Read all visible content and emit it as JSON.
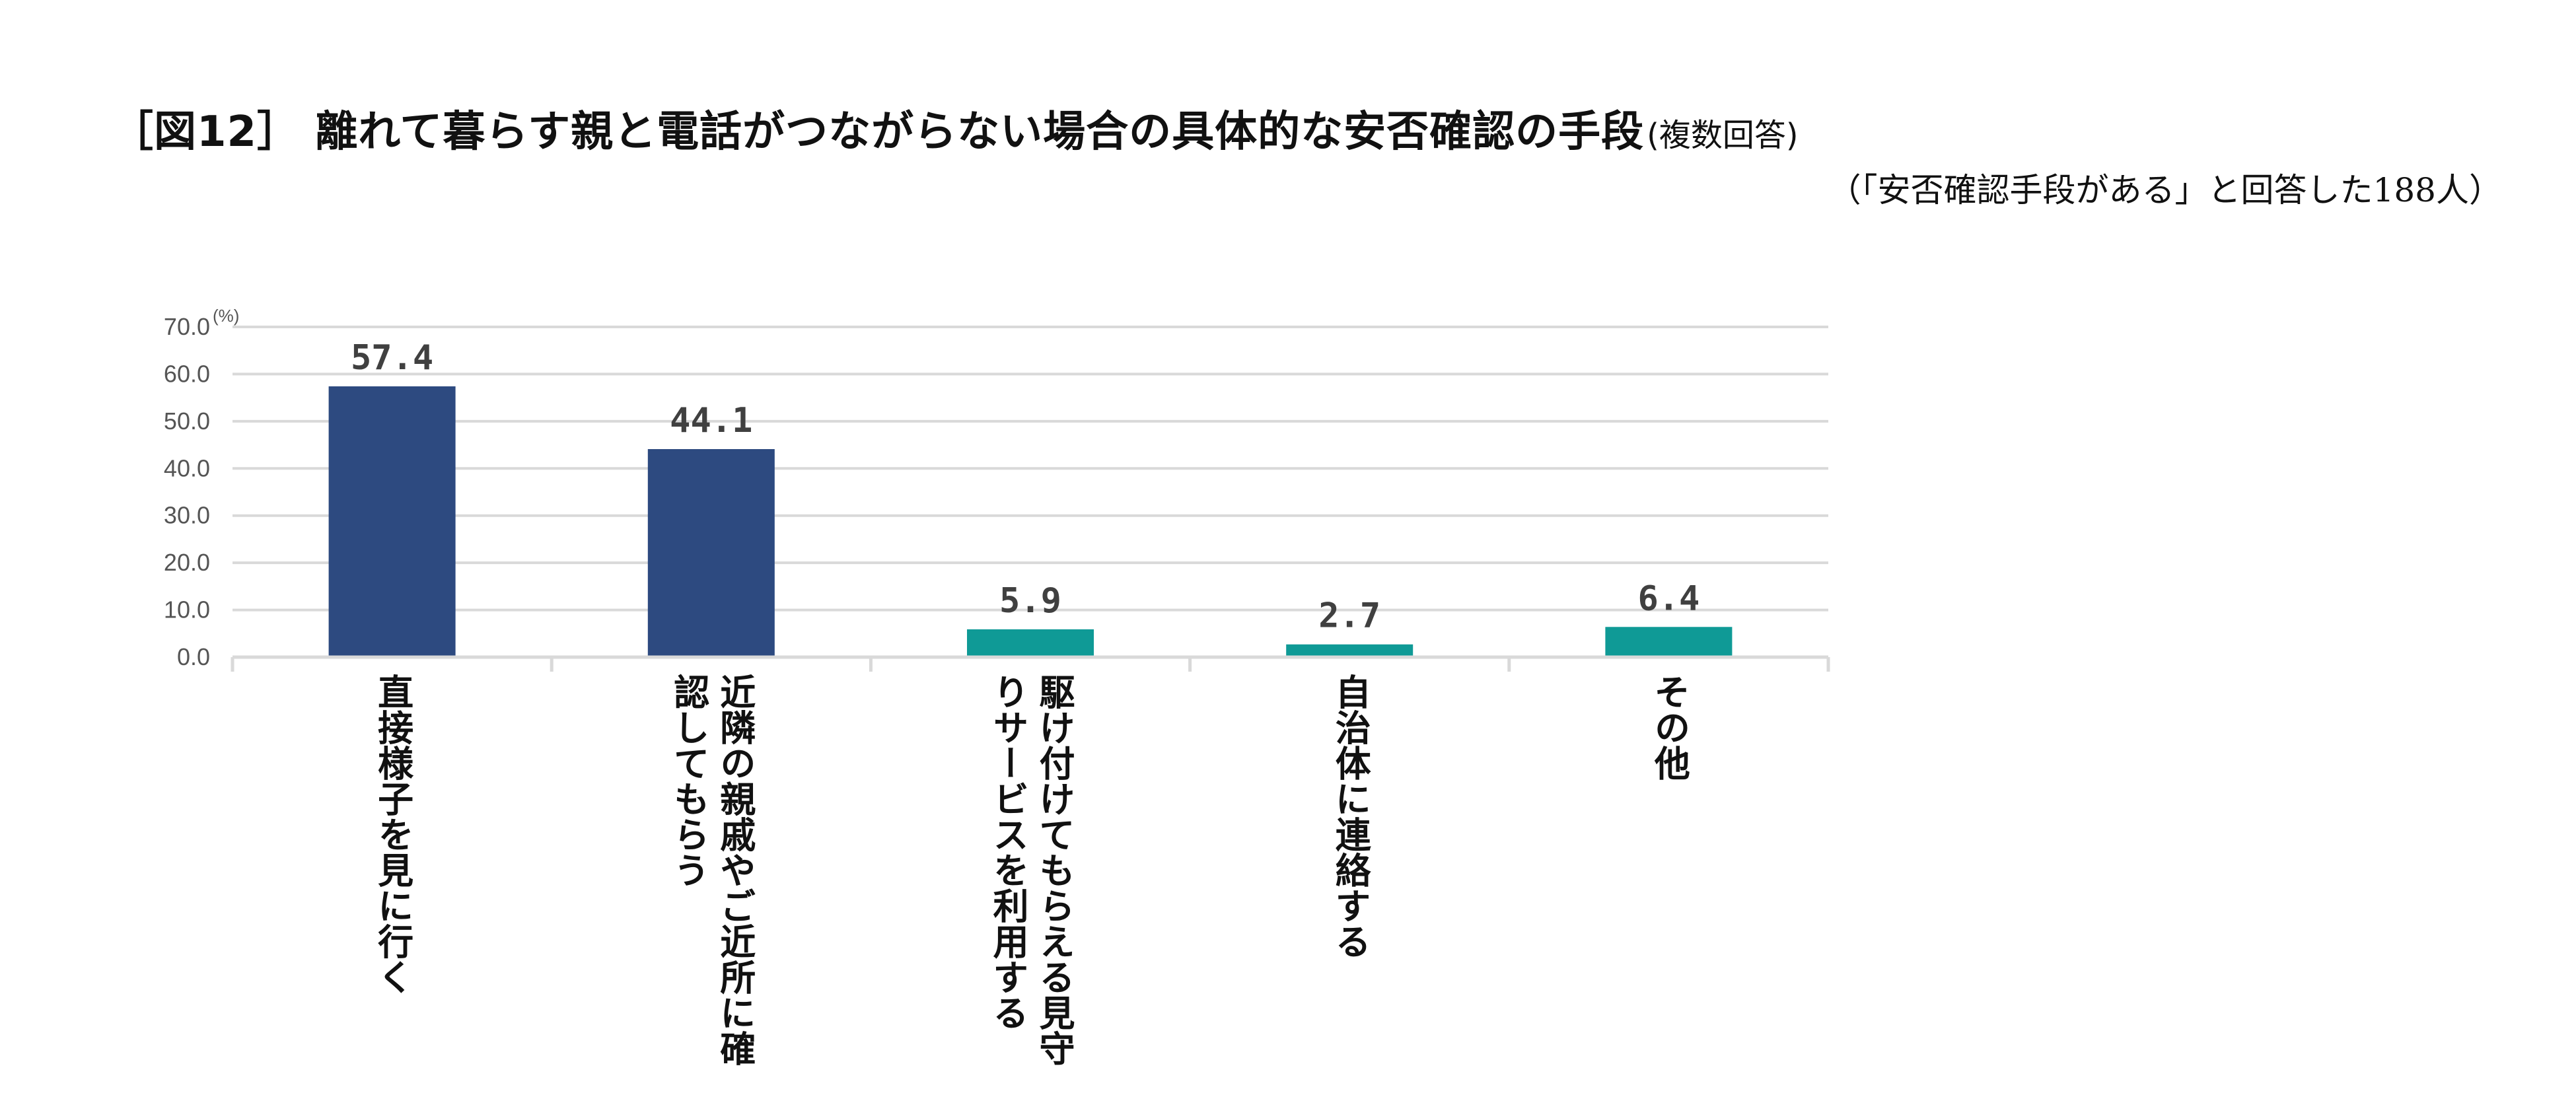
{
  "title": "［図12］ 離れて暮らす親と電話がつながらない場合の具体的な安否確認の手段",
  "title_note": "(複数回答)",
  "subtitle": "（「安否確認手段がある」と回答した188人）",
  "chart_data": {
    "type": "bar",
    "categories": [
      "直接様子を見に行く",
      "近隣の親戚やご近所に確認してもらう",
      "駆け付けてもらえる見守りサービスを利用する",
      "自治体に連絡する",
      "その他"
    ],
    "values": [
      57.4,
      44.1,
      5.9,
      2.7,
      6.4
    ],
    "value_labels": [
      "57.4",
      "44.1",
      "5.9",
      "2.7",
      "6.4"
    ],
    "bar_colors": [
      "#2D4A80",
      "#2D4A80",
      "#0F9A96",
      "#0F9A96",
      "#0F9A96"
    ],
    "ylim": [
      0,
      70
    ],
    "y_ticks": [
      "0.0",
      "10.0",
      "20.0",
      "30.0",
      "40.0",
      "50.0",
      "60.0",
      "70.0"
    ],
    "y_unit": "(%)",
    "grid": true,
    "grid_color": "#D9D9D9"
  }
}
